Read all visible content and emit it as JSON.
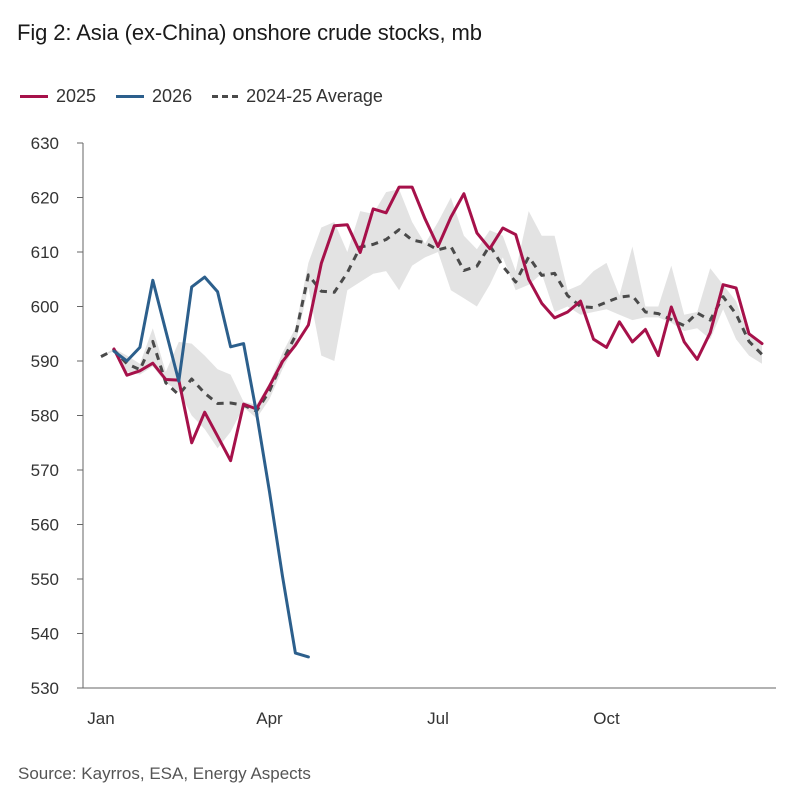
{
  "chart_data": {
    "type": "line",
    "title": "Fig 2: Asia (ex-China) onshore crude stocks, mb",
    "xlabel": "",
    "ylabel": "",
    "ylim": [
      530,
      630
    ],
    "yticks": [
      530,
      540,
      550,
      560,
      570,
      580,
      590,
      600,
      610,
      620,
      630
    ],
    "xlim": [
      0,
      51
    ],
    "xtick_labels": [
      "Jan",
      "Apr",
      "Jul",
      "Oct"
    ],
    "xtick_weeks": [
      0,
      13,
      26,
      39
    ],
    "legend_position": "top-left",
    "series": [
      {
        "name": "2025",
        "color": "#a6114a",
        "style": "solid",
        "x": [
          1,
          2,
          3,
          4,
          5,
          6,
          7,
          8,
          9,
          10,
          11,
          12,
          13,
          14,
          15,
          16,
          17,
          18,
          19,
          20,
          21,
          22,
          23,
          24,
          25,
          26,
          27,
          28,
          29,
          30,
          31,
          32,
          33,
          34,
          35,
          36,
          37,
          38,
          39,
          40,
          41,
          42,
          43,
          44,
          45,
          46,
          47,
          48,
          49,
          50,
          51
        ],
        "values": [
          592.2,
          587.4,
          588.2,
          589.6,
          586.6,
          586.5,
          575.0,
          580.6,
          576.2,
          571.7,
          582.1,
          581.2,
          585.4,
          589.9,
          592.9,
          596.6,
          607.9,
          614.8,
          615.0,
          609.9,
          617.9,
          617.2,
          621.9,
          621.9,
          616.1,
          611.0,
          616.4,
          620.7,
          613.5,
          610.6,
          614.4,
          613.2,
          605.0,
          600.6,
          597.9,
          599.0,
          601.0,
          594.0,
          592.5,
          597.2,
          593.5,
          595.8,
          591.0,
          599.9,
          593.5,
          590.3,
          595.2,
          604.0,
          603.4,
          595.0,
          593.2
        ]
      },
      {
        "name": "2026",
        "color": "#2c5f8c",
        "style": "solid",
        "x": [
          1,
          2,
          3,
          4,
          5,
          6,
          7,
          8,
          9,
          10,
          11,
          12,
          13,
          14,
          15,
          16
        ],
        "values": [
          591.8,
          590.0,
          592.5,
          604.8,
          595.5,
          586.3,
          603.6,
          605.4,
          602.7,
          592.6,
          593.2,
          580.5,
          566.0,
          550.5,
          536.4,
          535.7
        ]
      },
      {
        "name": "2024-25 Average",
        "color": "#4a4a4a",
        "style": "dashed",
        "x": [
          0,
          1,
          2,
          3,
          4,
          5,
          6,
          7,
          8,
          9,
          10,
          11,
          12,
          13,
          14,
          15,
          16,
          17,
          18,
          19,
          20,
          21,
          22,
          23,
          24,
          25,
          26,
          27,
          28,
          29,
          30,
          31,
          32,
          33,
          34,
          35,
          36,
          37,
          38,
          39,
          40,
          41,
          42,
          43,
          44,
          45,
          46,
          47,
          48,
          49,
          50,
          51
        ],
        "values": [
          590.8,
          592.0,
          589.5,
          588.4,
          593.6,
          586.0,
          583.8,
          586.7,
          584.1,
          582.2,
          582.3,
          581.9,
          580.8,
          584.5,
          590.0,
          594.6,
          605.8,
          602.8,
          602.6,
          606.2,
          610.9,
          611.4,
          612.3,
          614.1,
          612.2,
          611.7,
          610.4,
          611.0,
          606.6,
          607.4,
          611.2,
          607.4,
          604.5,
          609.1,
          605.7,
          606.1,
          602.0,
          600.0,
          599.8,
          600.8,
          601.7,
          602.0,
          599.0,
          598.7,
          597.6,
          596.5,
          598.8,
          597.5,
          601.8,
          598.6,
          593.6,
          591.2
        ]
      }
    ],
    "band": {
      "name": "2024-25 range",
      "color": "#e3e3e3",
      "x": [
        0,
        1,
        2,
        3,
        4,
        5,
        6,
        7,
        8,
        9,
        10,
        11,
        12,
        13,
        14,
        15,
        16,
        17,
        18,
        19,
        20,
        21,
        22,
        23,
        24,
        25,
        26,
        27,
        28,
        29,
        30,
        31,
        32,
        33,
        34,
        35,
        36,
        37,
        38,
        39,
        40,
        41,
        42,
        43,
        44,
        45,
        46,
        47,
        48,
        49,
        50,
        51
      ],
      "lower": [
        590.8,
        591.8,
        588.0,
        587.5,
        589.0,
        586.0,
        584.5,
        580.0,
        577.5,
        574.0,
        577.0,
        581.5,
        579.5,
        583.0,
        588.5,
        593.0,
        603.5,
        591.0,
        590.0,
        603.0,
        604.5,
        606.0,
        606.5,
        603.0,
        607.5,
        609.0,
        610.0,
        603.0,
        601.5,
        600.0,
        604.0,
        609.0,
        603.0,
        604.0,
        606.0,
        599.0,
        600.0,
        598.5,
        599.0,
        599.5,
        598.5,
        597.5,
        598.0,
        598.0,
        597.0,
        595.5,
        596.0,
        594.0,
        599.5,
        594.0,
        591.0,
        589.5
      ],
      "upper": [
        590.8,
        592.3,
        591.0,
        589.5,
        596.0,
        588.0,
        593.5,
        593.2,
        591.0,
        588.5,
        587.5,
        582.5,
        582.0,
        586.0,
        591.5,
        596.0,
        608.0,
        614.5,
        615.5,
        610.0,
        617.5,
        617.0,
        621.0,
        621.5,
        615.5,
        611.5,
        615.5,
        620.0,
        613.0,
        610.5,
        614.0,
        613.0,
        606.5,
        617.5,
        613.0,
        613.0,
        603.0,
        604.0,
        606.5,
        608.0,
        602.0,
        611.0,
        600.0,
        600.0,
        607.5,
        598.5,
        599.0,
        607.0,
        604.0,
        601.0,
        594.5,
        593.5
      ]
    }
  },
  "legend": {
    "items": [
      {
        "label": "2025"
      },
      {
        "label": "2026"
      },
      {
        "label": "2024-25 Average"
      }
    ]
  },
  "source_text": "Source: Kayrros, ESA, Energy Aspects"
}
